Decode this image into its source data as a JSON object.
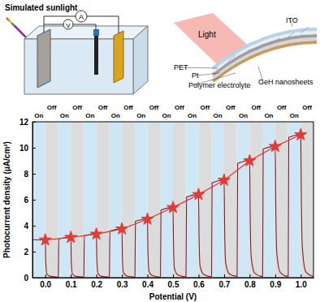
{
  "diagram": {
    "left_panel": {
      "light": "Simulated sunlight",
      "ammeter": "A",
      "voltmeter": "V"
    },
    "right_panel": {
      "light": "Light",
      "layers": [
        "ITO",
        "PET",
        "Pt",
        "Polymer electrolyte",
        "GeH nanosheets"
      ]
    }
  },
  "chart_data": {
    "type": "line",
    "x_label": "Potential (V)",
    "y_label": "Photocurrent density (μA/cm²)",
    "xlim": [
      -0.05,
      1.05
    ],
    "xticks": [
      {
        "value": 0,
        "label": "0.0"
      },
      0.1,
      0.2,
      0.3,
      0.4,
      0.5,
      0.6,
      0.7,
      0.8,
      0.9,
      {
        "value": 1,
        "label": "1.0"
      }
    ],
    "ylim": [
      0,
      12
    ],
    "yticks": [
      0,
      2,
      4,
      6,
      8,
      10,
      12
    ],
    "regions": [
      {
        "label": "On",
        "start": -0.05,
        "end": 0,
        "color": "#cfe6f5"
      },
      {
        "label": "Off",
        "start": 0,
        "end": 0.05,
        "color": "#dcdcdc"
      },
      {
        "label": "On",
        "start": 0.05,
        "end": 0.1,
        "color": "#cfe6f5"
      },
      {
        "label": "Off",
        "start": 0.1,
        "end": 0.15,
        "color": "#dcdcdc"
      },
      {
        "label": "On",
        "start": 0.15,
        "end": 0.2,
        "color": "#cfe6f5"
      },
      {
        "label": "Off",
        "start": 0.2,
        "end": 0.25,
        "color": "#dcdcdc"
      },
      {
        "label": "On",
        "start": 0.25,
        "end": 0.3,
        "color": "#cfe6f5"
      },
      {
        "label": "Off",
        "start": 0.3,
        "end": 0.35,
        "color": "#dcdcdc"
      },
      {
        "label": "On",
        "start": 0.35,
        "end": 0.4,
        "color": "#cfe6f5"
      },
      {
        "label": "Off",
        "start": 0.4,
        "end": 0.45,
        "color": "#dcdcdc"
      },
      {
        "label": "On",
        "start": 0.45,
        "end": 0.5,
        "color": "#cfe6f5"
      },
      {
        "label": "Off",
        "start": 0.5,
        "end": 0.55,
        "color": "#dcdcdc"
      },
      {
        "label": "On",
        "start": 0.55,
        "end": 0.6,
        "color": "#cfe6f5"
      },
      {
        "label": "Off",
        "start": 0.6,
        "end": 0.65,
        "color": "#dcdcdc"
      },
      {
        "label": "On",
        "start": 0.65,
        "end": 0.7,
        "color": "#cfe6f5"
      },
      {
        "label": "Off",
        "start": 0.7,
        "end": 0.75,
        "color": "#dcdcdc"
      },
      {
        "label": "On",
        "start": 0.75,
        "end": 0.8,
        "color": "#cfe6f5"
      },
      {
        "label": "Off",
        "start": 0.8,
        "end": 0.85,
        "color": "#dcdcdc"
      },
      {
        "label": "On",
        "start": 0.85,
        "end": 0.9,
        "color": "#cfe6f5"
      },
      {
        "label": "Off",
        "start": 0.9,
        "end": 0.95,
        "color": "#dcdcdc"
      },
      {
        "label": "On",
        "start": 0.95,
        "end": 1.0,
        "color": "#cfe6f5"
      },
      {
        "label": "Off",
        "start": 1.0,
        "end": 1.05,
        "color": "#dcdcdc"
      }
    ],
    "series": [
      {
        "type": "line",
        "color": "#8b1a1a",
        "x": [
          -0.049,
          -0.047,
          0,
          0.002,
          0.006,
          0.02,
          0.049,
          0.051,
          0.053,
          0.1,
          0.102,
          0.106,
          0.12,
          0.149,
          0.151,
          0.153,
          0.2,
          0.202,
          0.206,
          0.22,
          0.249,
          0.251,
          0.253,
          0.3,
          0.302,
          0.306,
          0.32,
          0.349,
          0.351,
          0.353,
          0.4,
          0.402,
          0.406,
          0.42,
          0.449,
          0.451,
          0.453,
          0.5,
          0.502,
          0.506,
          0.52,
          0.549,
          0.551,
          0.553,
          0.6,
          0.602,
          0.606,
          0.62,
          0.649,
          0.651,
          0.653,
          0.7,
          0.702,
          0.706,
          0.72,
          0.749,
          0.751,
          0.753,
          0.8,
          0.802,
          0.806,
          0.82,
          0.849,
          0.851,
          0.853,
          0.9,
          0.902,
          0.906,
          0.92,
          0.949,
          0.951,
          0.953,
          1.0,
          1.002,
          1.006,
          1.02,
          1.049
        ],
        "values": [
          2.95,
          2.92,
          2.9,
          1.2,
          0.3,
          0.1,
          0.05,
          0.1,
          3.0,
          3.1,
          1.2,
          0.3,
          0.1,
          0.05,
          0.1,
          3.25,
          3.35,
          1.4,
          0.35,
          0.1,
          0.05,
          0.1,
          3.6,
          3.75,
          1.6,
          0.4,
          0.12,
          0.05,
          0.1,
          4.35,
          4.5,
          2.0,
          0.5,
          0.15,
          0.05,
          0.1,
          5.2,
          5.4,
          2.6,
          0.7,
          0.2,
          0.08,
          0.1,
          6.2,
          6.4,
          3.2,
          0.9,
          0.25,
          0.08,
          0.1,
          7.3,
          7.5,
          4.0,
          1.2,
          0.3,
          0.1,
          0.1,
          8.8,
          9.0,
          5.0,
          1.6,
          0.35,
          0.1,
          0.1,
          9.9,
          10.1,
          6.0,
          2.0,
          0.4,
          0.1,
          0.1,
          10.8,
          11.0,
          6.8,
          2.4,
          0.45,
          0.1
        ]
      },
      {
        "type": "line",
        "color": "#e53935",
        "marker": "star",
        "x": [
          0,
          0.1,
          0.2,
          0.3,
          0.4,
          0.5,
          0.6,
          0.7,
          0.8,
          0.9,
          1.0
        ],
        "values": [
          2.9,
          3.1,
          3.35,
          3.75,
          4.5,
          5.4,
          6.4,
          7.5,
          9.0,
          10.1,
          11.0
        ]
      }
    ]
  }
}
